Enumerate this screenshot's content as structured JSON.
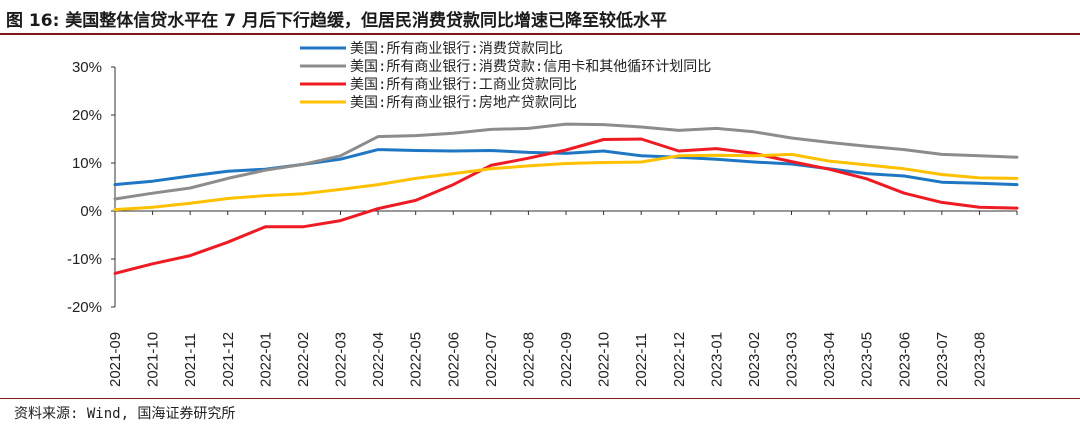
{
  "header": {
    "title": "图 16: 美国整体信贷水平在 7 月后下行趋缓，但居民消费贷款同比增速已降至较低水平"
  },
  "footer": {
    "source": "资料来源: Wind, 国海证券研究所"
  },
  "chart_data": {
    "type": "line",
    "title": "",
    "xlabel": "",
    "ylabel": "",
    "ylim": [
      -20,
      30
    ],
    "y_ticks": [
      "30%",
      "20%",
      "10%",
      "0%",
      "-10%",
      "-20%"
    ],
    "y_tick_values": [
      30,
      20,
      10,
      0,
      -10,
      -20
    ],
    "grid": false,
    "legend_position": "top",
    "x_axis_type": "date",
    "x_range": [
      "2021-09",
      "2023-08"
    ],
    "x_ticks": [
      "2021-09",
      "2021-10",
      "2021-11",
      "2021-12",
      "2022-01",
      "2022-02",
      "2022-03",
      "2022-04",
      "2022-05",
      "2022-06",
      "2022-07",
      "2022-08",
      "2022-09",
      "2022-10",
      "2022-11",
      "2022-12",
      "2023-01",
      "2023-02",
      "2023-03",
      "2023-04",
      "2023-05",
      "2023-06",
      "2023-07",
      "2023-08"
    ],
    "x": [
      "2021-09",
      "2021-10",
      "2021-11",
      "2021-12",
      "2022-01",
      "2022-02",
      "2022-03",
      "2022-04",
      "2022-05",
      "2022-06",
      "2022-07",
      "2022-08",
      "2022-09",
      "2022-10",
      "2022-11",
      "2022-12",
      "2023-01",
      "2023-02",
      "2023-03",
      "2023-04",
      "2023-05",
      "2023-06",
      "2023-07",
      "2023-08",
      "2023-09"
    ],
    "series": [
      {
        "name": "美国:所有商业银行:消费贷款同比",
        "color": "#1f77c4",
        "values": [
          5.5,
          6.2,
          7.3,
          8.3,
          8.7,
          9.7,
          10.8,
          12.8,
          12.6,
          12.5,
          12.6,
          12.2,
          12.0,
          12.5,
          11.5,
          11.2,
          10.8,
          10.2,
          9.8,
          8.8,
          7.8,
          7.3,
          6.0,
          5.8,
          5.5
        ]
      },
      {
        "name": "美国:所有商业银行:消费贷款:信用卡和其他循环计划同比",
        "color": "#8c8c8c",
        "values": [
          2.5,
          3.7,
          4.8,
          6.8,
          8.5,
          9.7,
          11.5,
          15.5,
          15.7,
          16.2,
          17.0,
          17.2,
          18.1,
          18.0,
          17.5,
          16.8,
          17.2,
          16.5,
          15.2,
          14.3,
          13.5,
          12.8,
          11.8,
          11.5,
          11.2
        ]
      },
      {
        "name": "美国:所有商业银行:工商业贷款同比",
        "color": "#ee1b24",
        "values": [
          -13.0,
          -11.0,
          -9.3,
          -6.5,
          -3.3,
          -3.3,
          -2.0,
          0.5,
          2.2,
          5.5,
          9.5,
          11.0,
          12.7,
          14.9,
          15.0,
          12.5,
          13.0,
          12.0,
          10.3,
          8.7,
          6.7,
          3.7,
          1.8,
          0.8,
          0.6
        ]
      },
      {
        "name": "美国:所有商业银行:房地产贷款同比",
        "color": "#ffc000",
        "values": [
          0.3,
          0.8,
          1.6,
          2.6,
          3.2,
          3.6,
          4.5,
          5.5,
          6.8,
          7.8,
          8.8,
          9.4,
          9.9,
          10.1,
          10.2,
          11.5,
          11.6,
          11.5,
          11.8,
          10.4,
          9.6,
          8.8,
          7.6,
          6.9,
          6.8
        ]
      }
    ]
  }
}
